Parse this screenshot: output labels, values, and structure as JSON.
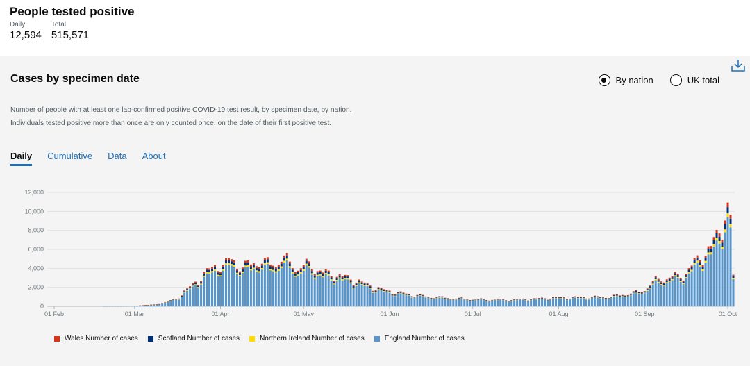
{
  "header": {
    "title": "People tested positive",
    "daily_label": "Daily",
    "daily_value": "12,594",
    "total_label": "Total",
    "total_value": "515,571"
  },
  "card": {
    "title": "Cases by specimen date",
    "download_icon": "download-icon",
    "radio_by_nation": "By nation",
    "radio_uk_total": "UK total",
    "selected_radio": "By nation",
    "description": "Number of people with at least one lab-confirmed positive COVID-19 test result, by specimen date, by nation. Individuals tested positive more than once are only counted once, on the date of their first positive test.",
    "tabs": [
      "Daily",
      "Cumulative",
      "Data",
      "About"
    ],
    "active_tab": "Daily"
  },
  "chart_data": {
    "type": "bar",
    "stacked": true,
    "ylim": [
      0,
      12000
    ],
    "yticks": [
      "0",
      "2,000",
      "4,000",
      "6,000",
      "8,000",
      "10,000",
      "12,000"
    ],
    "xticks": [
      "01 Feb",
      "01 Mar",
      "01 Apr",
      "01 May",
      "01 Jun",
      "01 Jul",
      "01 Aug",
      "01 Sep",
      "01 Oct"
    ],
    "grid": true,
    "legend_position": "bottom",
    "x_start": "2020-01-30",
    "days": 248,
    "series_order": [
      "England Number of cases",
      "Northern Ireland Number of cases",
      "Scotland Number of cases",
      "Wales Number of cases"
    ],
    "colors": {
      "England Number of cases": "#5694ca",
      "Northern Ireland Number of cases": "#ffdd00",
      "Scotland Number of cases": "#003078",
      "Wales Number of cases": "#d4351c"
    },
    "legend": [
      {
        "name": "Wales Number of cases",
        "color": "#d4351c"
      },
      {
        "name": "Scotland Number of cases",
        "color": "#003078"
      },
      {
        "name": "Northern Ireland Number of cases",
        "color": "#ffdd00"
      },
      {
        "name": "England Number of cases",
        "color": "#5694ca"
      }
    ],
    "england_key_values": [
      [
        "2020-01-30",
        0
      ],
      [
        "2020-02-25",
        5
      ],
      [
        "2020-03-01",
        40
      ],
      [
        "2020-03-10",
        200
      ],
      [
        "2020-03-16",
        700
      ],
      [
        "2020-03-22",
        2000
      ],
      [
        "2020-03-27",
        3200
      ],
      [
        "2020-03-31",
        3900
      ],
      [
        "2020-04-02",
        3700
      ],
      [
        "2020-04-05",
        4400
      ],
      [
        "2020-04-09",
        3600
      ],
      [
        "2020-04-14",
        4200
      ],
      [
        "2020-04-19",
        3900
      ],
      [
        "2020-04-24",
        4400
      ],
      [
        "2020-04-29",
        3500
      ],
      [
        "2020-05-03",
        3900
      ],
      [
        "2020-05-08",
        3100
      ],
      [
        "2020-05-13",
        2900
      ],
      [
        "2020-05-20",
        2400
      ],
      [
        "2020-05-27",
        1700
      ],
      [
        "2020-06-03",
        1300
      ],
      [
        "2020-06-15",
        900
      ],
      [
        "2020-07-01",
        650
      ],
      [
        "2020-07-15",
        600
      ],
      [
        "2020-07-31",
        800
      ],
      [
        "2020-08-10",
        850
      ],
      [
        "2020-08-20",
        900
      ],
      [
        "2020-08-31",
        1400
      ],
      [
        "2020-09-05",
        2400
      ],
      [
        "2020-09-10",
        2700
      ],
      [
        "2020-09-15",
        2900
      ],
      [
        "2020-09-20",
        4300
      ],
      [
        "2020-09-25",
        5500
      ],
      [
        "2020-09-28",
        6900
      ],
      [
        "2020-09-30",
        8800
      ],
      [
        "2020-10-01",
        8900
      ],
      [
        "2020-10-02",
        8100
      ],
      [
        "2020-10-03",
        2800
      ],
      [
        "2020-10-04",
        300
      ]
    ],
    "nation_shares_of_england": {
      "Northern Ireland Number of cases": 0.04,
      "Scotland Number of cases": 0.07,
      "Wales Number of cases": 0.05
    }
  }
}
